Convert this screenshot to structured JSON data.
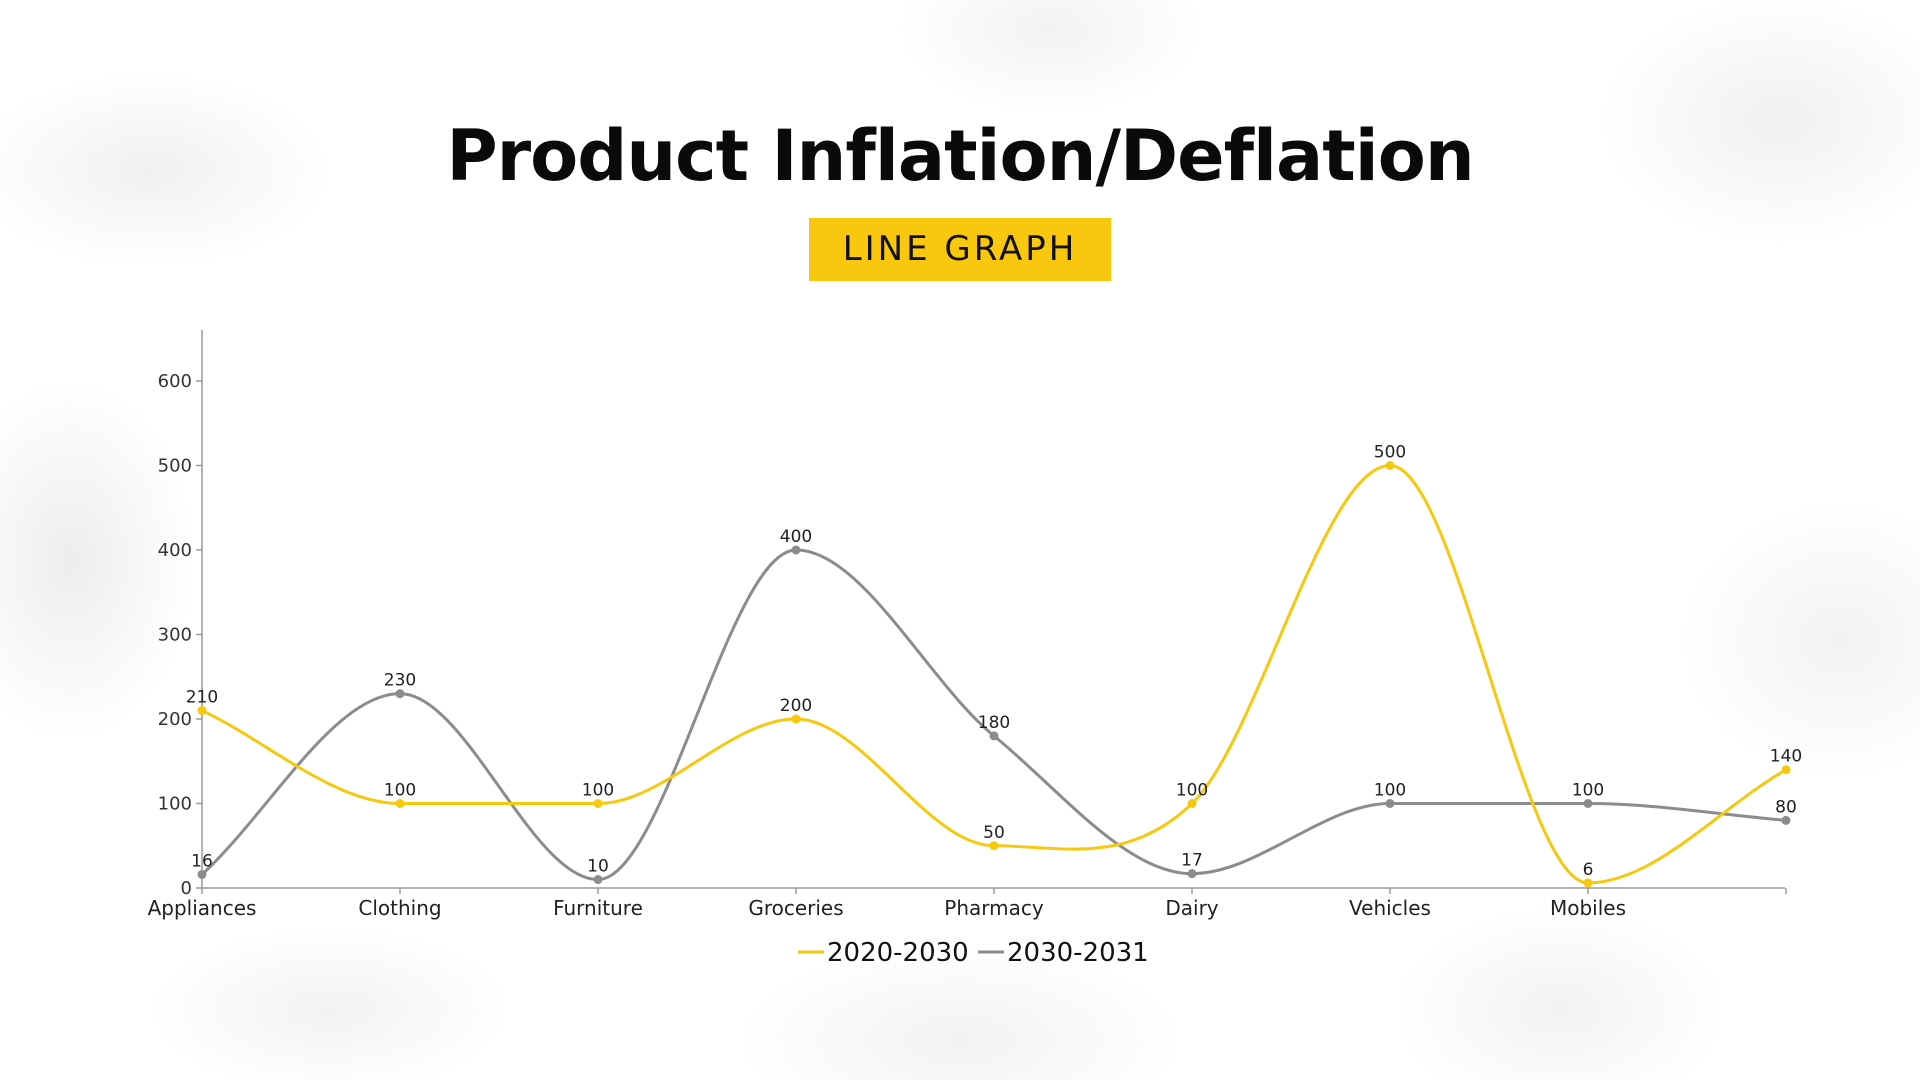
{
  "title": "Product Inflation/Deflation",
  "subtitle": "LINE GRAPH",
  "colors": {
    "series_1": "#f6c90e",
    "series_2": "#8c8c8c",
    "accent_box": "#f9c80e"
  },
  "chart_data": {
    "type": "line",
    "categories": [
      "Appliances",
      "Clothing",
      "Furniture",
      "Groceries",
      "Pharmacy",
      "Dairy",
      "Vehicles",
      "Mobiles",
      ""
    ],
    "series": [
      {
        "name": "2020-2030",
        "values": [
          210,
          100,
          100,
          200,
          50,
          100,
          500,
          6,
          140
        ]
      },
      {
        "name": "2030-2031",
        "values": [
          16,
          230,
          10,
          400,
          180,
          17,
          100,
          100,
          80
        ]
      }
    ],
    "ylim": [
      0,
      600
    ],
    "yticks": [
      0,
      100,
      200,
      300,
      400,
      500,
      600
    ],
    "smooth": true,
    "grid": false,
    "legend": "bottom-center",
    "data_labels": true
  }
}
